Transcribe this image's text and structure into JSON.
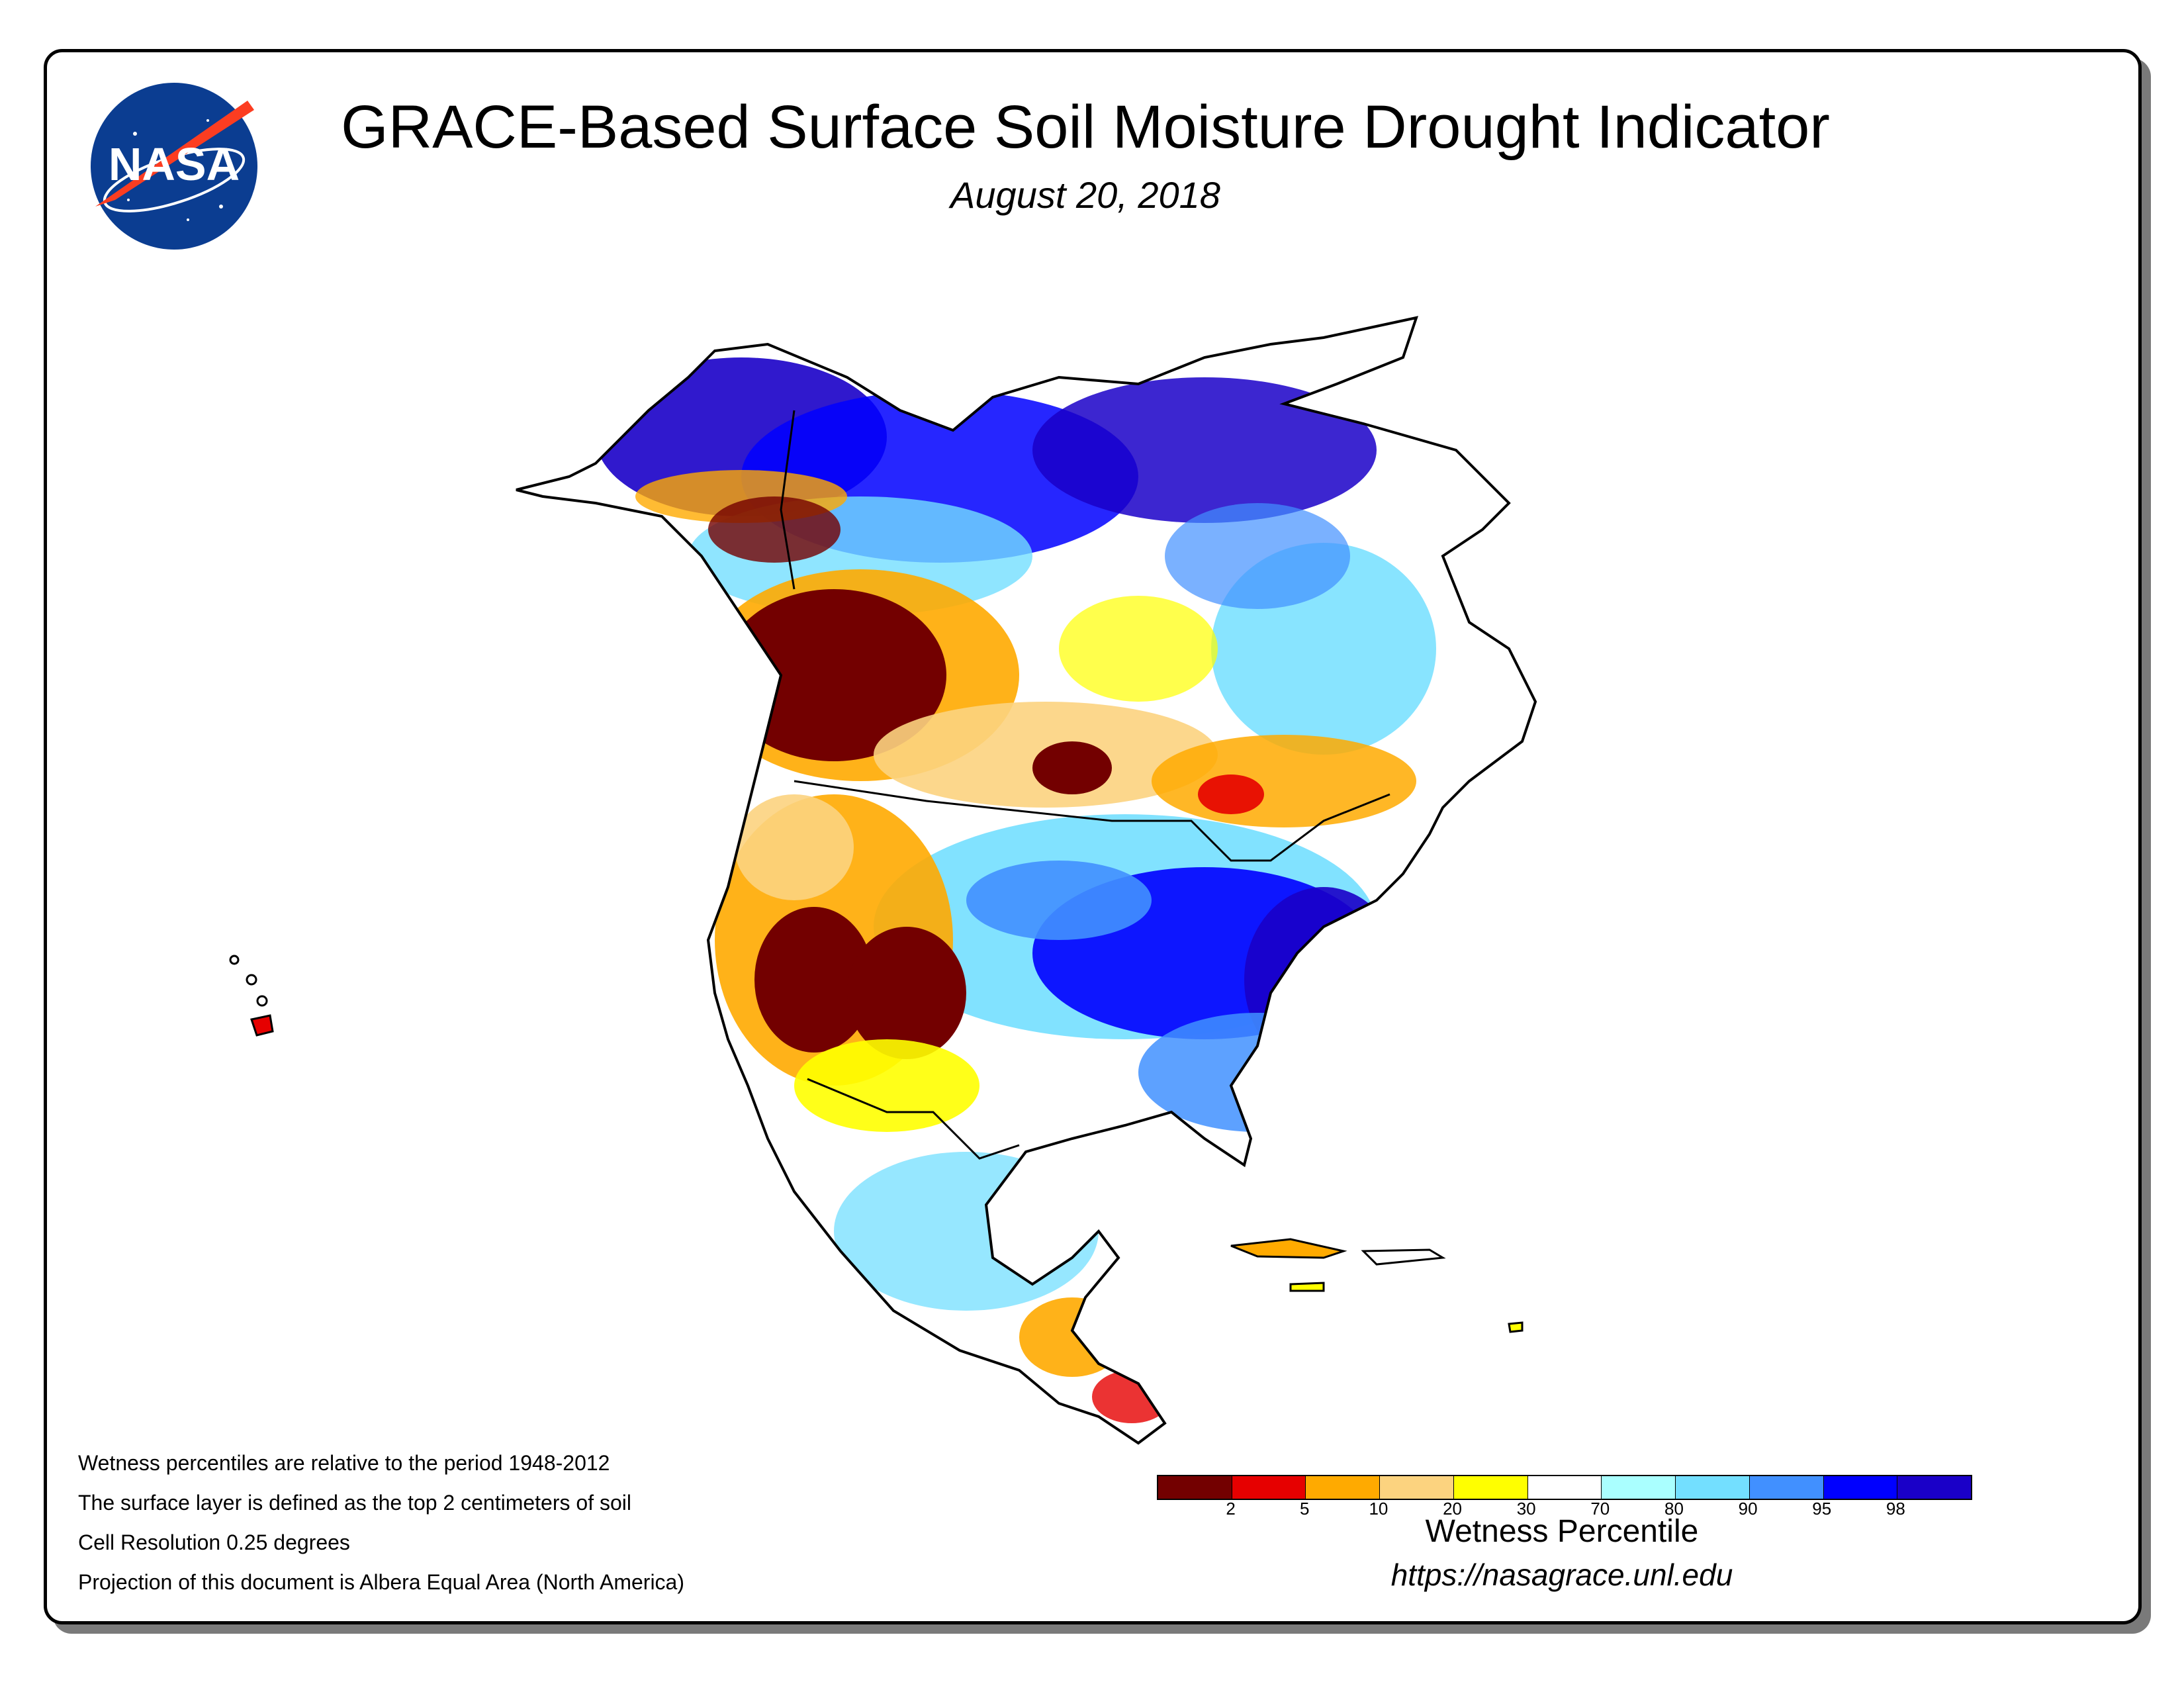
{
  "header": {
    "title": "GRACE-Based Surface Soil Moisture Drought Indicator",
    "date": "August 20, 2018",
    "logo_text": "NASA"
  },
  "map": {
    "region": "North America",
    "colors": {
      "land_outline": "#000000",
      "water": "#ffffff",
      "dry_extreme": "#7a0000",
      "wet_extreme": "#1a14d0"
    }
  },
  "notes": [
    "Wetness percentiles are relative to the period 1948-2012",
    "The surface layer is defined as the top 2 centimeters of soil",
    "Cell Resolution 0.25 degrees",
    "Projection of this document is Albera Equal Area (North America)"
  ],
  "legend": {
    "title": "Wetness Percentile",
    "colors": [
      "#730000",
      "#e60000",
      "#ffaa00",
      "#fcd37f",
      "#ffff00",
      "#ffffff",
      "#aaffff",
      "#73dfff",
      "#4190ff",
      "#0000ff",
      "#1a00c8"
    ],
    "ticks": [
      "2",
      "5",
      "10",
      "20",
      "30",
      "70",
      "80",
      "90",
      "95",
      "98"
    ]
  },
  "footer": {
    "url": "https://nasagrace.unl.edu"
  }
}
